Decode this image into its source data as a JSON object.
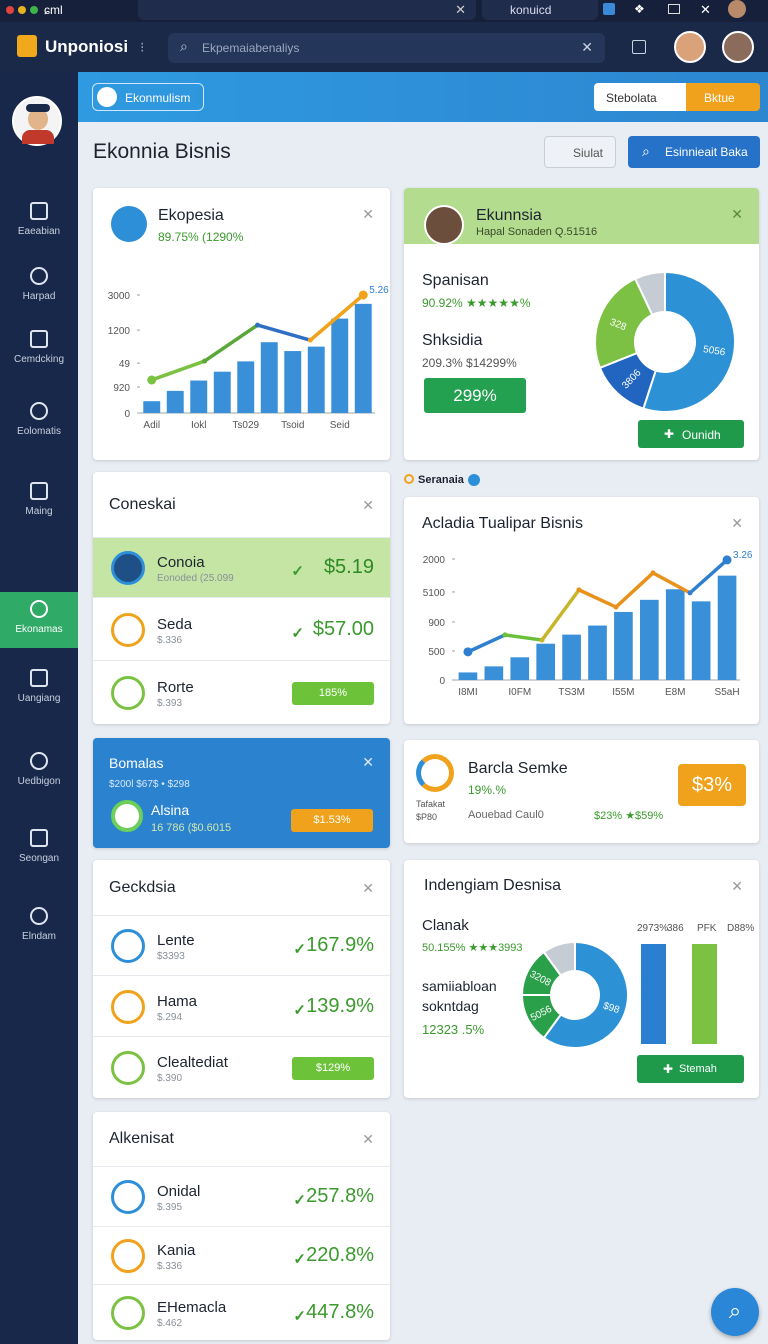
{
  "browser": {
    "tabs": [
      "ɕml",
      "konuicd"
    ]
  },
  "app": {
    "name": "Unponiosi",
    "search": "Ekpemaiabenaliys"
  },
  "nav": {
    "items": [
      "Eaeabian",
      "Harpad",
      "Cemdcking",
      "Eolomatis",
      "Maing",
      "Ekonamas",
      "Uangiang",
      "Uedbigon",
      "Seongan",
      "Elndam"
    ],
    "active": 5
  },
  "banner": {
    "chip": "Ekonmulism",
    "select": "Stebolata",
    "button": "Bktue"
  },
  "header": {
    "title": "Ekonnia Bisnis",
    "buttons": [
      "Siulat",
      "Esinnieait Baka"
    ]
  },
  "cards": {
    "ekopesia": {
      "title": "Ekopesia",
      "subtitle": "89.75% (1290%",
      "chart": {
        "type": "bar_line",
        "ylim": [
          0,
          4
        ],
        "yticks": [
          0,
          {
            "value": 0.88,
            "label": "920"
          },
          {
            "value": 1.69,
            "label": "49"
          },
          {
            "value": 2.81,
            "label": "1200"
          },
          {
            "value": 4,
            "label": "3000"
          }
        ],
        "categories": [
          "Adil",
          null,
          "Iokl",
          null,
          "Ts029",
          null,
          "Tsoid",
          null,
          "Seid",
          null
        ],
        "series": [
          {
            "type": "bar",
            "color": "#3a8fd9",
            "values": [
              0.4,
              0.75,
              1.1,
              1.4,
              1.75,
              2.4,
              2.1,
              2.25,
              3.2,
              3.7
            ]
          },
          {
            "type": "line",
            "segment_colors": [
              "#7cc242",
              "#5aa83a",
              "#2f6fc4",
              "#f0a21a"
            ],
            "values": [
              1.12,
              1.76,
              2.98,
              2.47,
              4.0
            ],
            "annotation": "5.26"
          }
        ]
      }
    },
    "ekunnsia": {
      "title": "Ekunnsia",
      "subtitle": "Hapal Sonaden Q.51516",
      "rows": [
        {
          "label": "Spanisan",
          "value": "90.92% ★★★★★%"
        },
        {
          "label": "Shksidia",
          "value": "209.3% $14299%"
        }
      ],
      "badge": "299%",
      "button": "Ounidh",
      "chart": {
        "type": "donut",
        "values": [
          55,
          14,
          24,
          7
        ],
        "colors": [
          "#2d91d6",
          "#2165c0",
          "#7cc143",
          "#c6ccd4"
        ],
        "labels": [
          "5056",
          "3806",
          "328",
          null
        ]
      }
    },
    "coneskai": {
      "title": "Coneskai",
      "rows": [
        {
          "name": "Conoia",
          "sub": "Eonoded (25.099",
          "value": "$5.19"
        },
        {
          "name": "Seda",
          "sub": "$.336",
          "value": "$57.00"
        },
        {
          "name": "Rorte",
          "sub": "$.393",
          "value": "185%"
        }
      ]
    },
    "tualipar": {
      "tag": "Seranaia",
      "title": "Acladia Tualipar Bisnis",
      "chart": {
        "type": "bar_line",
        "ylim": [
          0,
          4
        ],
        "yticks": [
          0,
          {
            "value": 0.96,
            "label": "500"
          },
          {
            "value": 1.92,
            "label": "900"
          },
          {
            "value": 2.91,
            "label": "5100"
          },
          {
            "value": 4,
            "label": "2000"
          }
        ],
        "categories": [
          "I8MI",
          null,
          "I0FM",
          null,
          "TS3M",
          null,
          "I55M",
          null,
          "E8M",
          null,
          "S5aH"
        ],
        "series": [
          {
            "type": "bar",
            "color": "#3a8fd9",
            "values": [
              0.25,
              0.45,
              0.75,
              1.2,
              1.5,
              1.8,
              2.25,
              2.65,
              3.0,
              2.6,
              3.45
            ]
          },
          {
            "type": "line",
            "segment_colors": [
              "#2f7fd0",
              "#6bbf3a",
              "#c9b52a",
              "#e8921c",
              "#e8921c",
              "#e8921c",
              "#2f7fd0"
            ],
            "values": [
              0.93,
              1.49,
              1.32,
              2.98,
              2.41,
              3.54,
              2.88,
              3.97
            ],
            "annotation": "3.26"
          }
        ]
      }
    },
    "bomalas": {
      "title": "Bomalas",
      "subtitle": "$200l  $67$ • $298",
      "name": "Alsina",
      "sub": "16 786 ($0.6015",
      "badge": "$1.53%"
    },
    "barcla": {
      "title": "Barcla Semke",
      "subtitle": "19%.%",
      "side": "Tafakat $P80",
      "note": "Aouebad Caul0",
      "stats": "$23% ★$59%",
      "badge": "$3%"
    },
    "geckdsia": {
      "title": "Geckdsia",
      "rows": [
        {
          "name": "Lente",
          "sub": "$3393",
          "value": "167.9%"
        },
        {
          "name": "Hama",
          "sub": "$.294",
          "value": "139.9%"
        },
        {
          "name": "Clealtediat",
          "sub": "$.390",
          "value": "$129%"
        }
      ]
    },
    "indengiam": {
      "title": "Indengiam Desnisa",
      "label1": "Clanak",
      "value1": "50.155% ★★★3993",
      "label2": "samiiabloan sokntdag",
      "value2": "12323 .5%",
      "chart": {
        "type": "donut",
        "values": [
          60,
          15,
          15,
          10
        ],
        "colors": [
          "#2d91d6",
          "#2aa04a",
          "#2aa04a",
          "#c6ccd4"
        ],
        "labels": [
          "$98",
          "5056",
          "3208",
          null
        ]
      },
      "bars": {
        "type": "bar",
        "ylim": [
          0,
          100
        ],
        "headers": [
          "2973%",
          "386",
          "PFK",
          "D88%"
        ],
        "values": [
          100,
          100
        ],
        "colors": [
          "#2a7fd0",
          "#7cc242"
        ]
      },
      "button": "Stemah"
    },
    "alkenisat": {
      "title": "Alkenisat",
      "rows": [
        {
          "name": "Onidal",
          "sub": "$.395",
          "value": "257.8%"
        },
        {
          "name": "Kania",
          "sub": "$.336",
          "value": "220.8%"
        },
        {
          "name": "EHemacla",
          "sub": "$.462",
          "value": "447.8%"
        }
      ]
    }
  }
}
